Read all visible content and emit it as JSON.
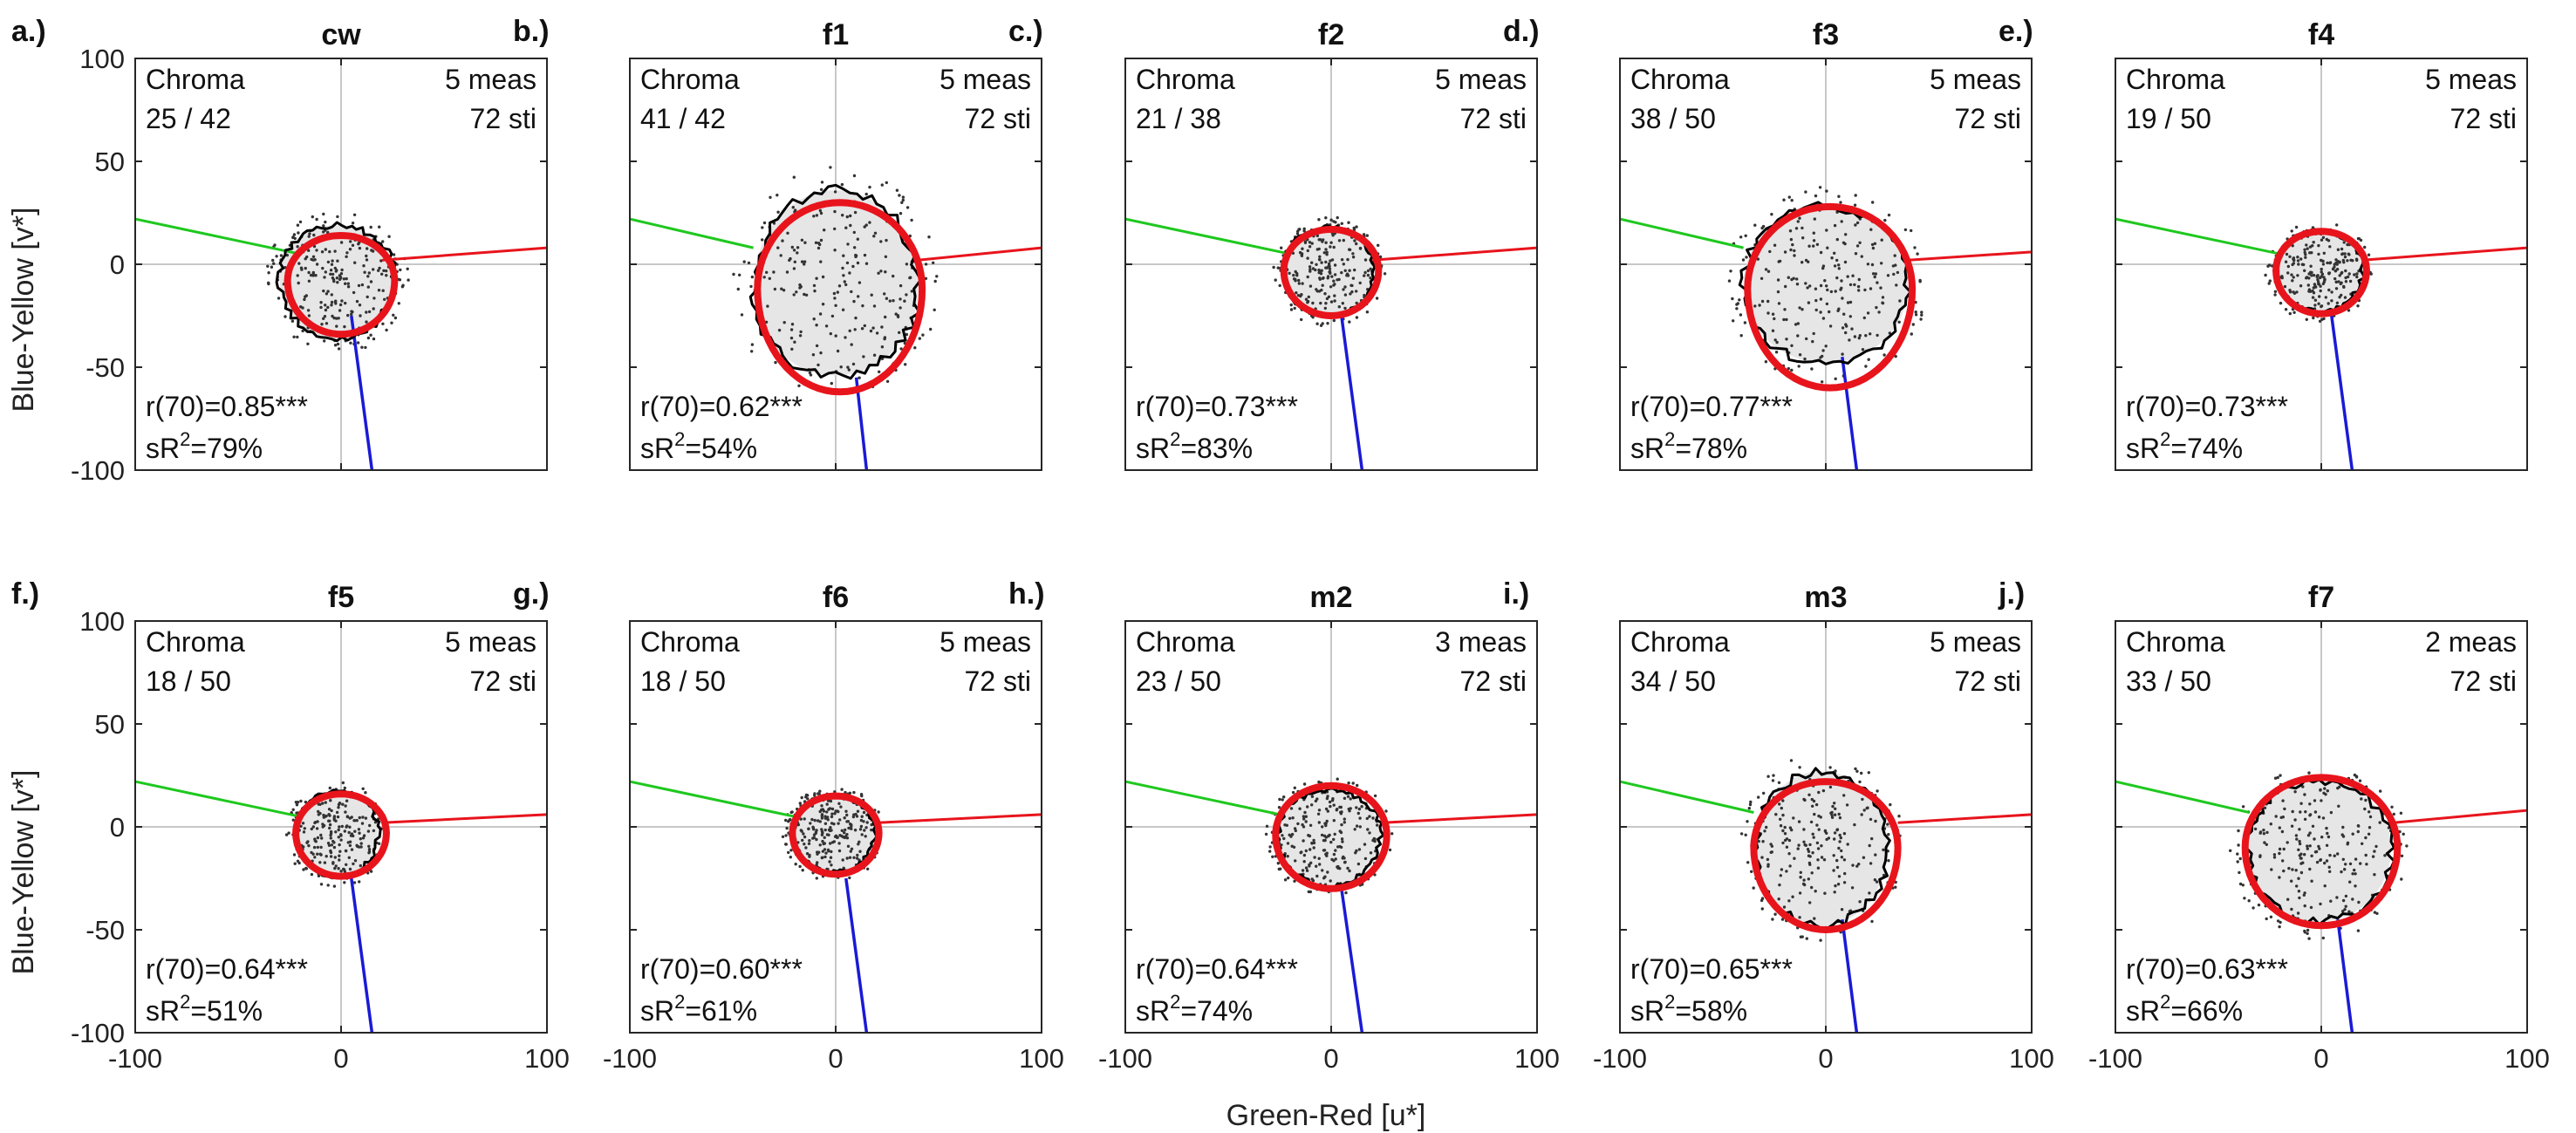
{
  "figure": {
    "xlabel": "Green-Red [u*]",
    "ylabel": "Blue-Yellow [v*]",
    "xlim": [
      -100,
      100
    ],
    "ylim": [
      -100,
      100
    ],
    "xticks": [
      "-100",
      "0",
      "100"
    ],
    "yticks": [
      "100",
      "50",
      "0",
      "-50",
      "-100"
    ],
    "colors": {
      "fit_contour": "#e8141c",
      "data_contour": "#000000",
      "green_axis": "#1ec81e",
      "red_axis": "#e8141c",
      "blue_axis": "#1a1ad6",
      "fill": "#e6e6e6",
      "grid": "#c8c8c8"
    }
  },
  "chart_data": [
    {
      "type": "scatter",
      "panel": "a.)",
      "title": "cw",
      "chroma_label": "Chroma",
      "chroma": "25 / 42",
      "meas": "5 meas",
      "sti": "72 sti",
      "r_text": "r(70)=0.85***",
      "sr2_text": "=79%",
      "red_shape": {
        "cx": 0,
        "cy": -8,
        "rx": 26,
        "up": 22,
        "down": 26
      },
      "black_shape": {
        "cx": -2,
        "cy": -6,
        "rx": 28,
        "up": 25,
        "down": 30
      },
      "green_line": [
        [
          -100,
          22
        ],
        [
          -20,
          5
        ]
      ],
      "red_line": [
        [
          20,
          2
        ],
        [
          100,
          8
        ]
      ],
      "blue_line": [
        [
          5,
          -25
        ],
        [
          15,
          -100
        ]
      ]
    },
    {
      "type": "scatter",
      "panel": "b.)",
      "title": "f1",
      "chroma_label": "Chroma",
      "chroma": "41 / 42",
      "meas": "5 meas",
      "sti": "72 sti",
      "r_text": "r(70)=0.62***",
      "sr2_text": "=54%",
      "red_shape": {
        "cx": 2,
        "cy": -12,
        "rx": 40,
        "up": 42,
        "down": 50
      },
      "black_shape": {
        "cx": 0,
        "cy": -12,
        "rx": 40,
        "up": 48,
        "down": 42
      },
      "green_line": [
        [
          -100,
          22
        ],
        [
          -40,
          8
        ]
      ],
      "red_line": [
        [
          40,
          2
        ],
        [
          100,
          8
        ]
      ],
      "blue_line": [
        [
          10,
          -55
        ],
        [
          15,
          -100
        ]
      ]
    },
    {
      "type": "scatter",
      "panel": "c.)",
      "title": "f2",
      "chroma_label": "Chroma",
      "chroma": "21 / 38",
      "meas": "5 meas",
      "sti": "72 sti",
      "r_text": "r(70)=0.73***",
      "sr2_text": "=83%",
      "red_shape": {
        "cx": 0,
        "cy": -3,
        "rx": 23,
        "up": 20,
        "down": 22
      },
      "black_shape": {
        "cx": -1,
        "cy": -3,
        "rx": 22,
        "up": 21,
        "down": 22
      },
      "green_line": [
        [
          -100,
          22
        ],
        [
          -20,
          5
        ]
      ],
      "red_line": [
        [
          20,
          2
        ],
        [
          100,
          8
        ]
      ],
      "blue_line": [
        [
          5,
          -25
        ],
        [
          15,
          -100
        ]
      ]
    },
    {
      "type": "scatter",
      "panel": "d.)",
      "title": "f3",
      "chroma_label": "Chroma",
      "chroma": "38 / 50",
      "meas": "5 meas",
      "sti": "72 sti",
      "r_text": "r(70)=0.77***",
      "sr2_text": "=78%",
      "red_shape": {
        "cx": 2,
        "cy": -12,
        "rx": 40,
        "up": 40,
        "down": 48
      },
      "black_shape": {
        "cx": 0,
        "cy": -10,
        "rx": 40,
        "up": 38,
        "down": 38
      },
      "green_line": [
        [
          -100,
          22
        ],
        [
          -40,
          8
        ]
      ],
      "red_line": [
        [
          40,
          2
        ],
        [
          100,
          6
        ]
      ],
      "blue_line": [
        [
          8,
          -45
        ],
        [
          15,
          -100
        ]
      ]
    },
    {
      "type": "scatter",
      "panel": "e.)",
      "title": "f4",
      "chroma_label": "Chroma",
      "chroma": "19 / 50",
      "meas": "5 meas",
      "sti": "72 sti",
      "r_text": "r(70)=0.73***",
      "sr2_text": "=74%",
      "red_shape": {
        "cx": 0,
        "cy": -3,
        "rx": 22,
        "up": 19,
        "down": 21
      },
      "black_shape": {
        "cx": -1,
        "cy": -3,
        "rx": 21,
        "up": 19,
        "down": 20
      },
      "green_line": [
        [
          -100,
          22
        ],
        [
          -20,
          5
        ]
      ],
      "red_line": [
        [
          20,
          2
        ],
        [
          100,
          8
        ]
      ],
      "blue_line": [
        [
          5,
          -25
        ],
        [
          15,
          -100
        ]
      ]
    },
    {
      "type": "scatter",
      "panel": "f.)",
      "title": "f5",
      "chroma_label": "Chroma",
      "chroma": "18 / 50",
      "meas": "5 meas",
      "sti": "72 sti",
      "r_text": "r(70)=0.64***",
      "sr2_text": "=51%",
      "red_shape": {
        "cx": 0,
        "cy": -3,
        "rx": 22,
        "up": 19,
        "down": 21
      },
      "black_shape": {
        "cx": -2,
        "cy": -3,
        "rx": 20,
        "up": 20,
        "down": 21
      },
      "green_line": [
        [
          -100,
          22
        ],
        [
          -20,
          5
        ]
      ],
      "red_line": [
        [
          20,
          2
        ],
        [
          100,
          6
        ]
      ],
      "blue_line": [
        [
          5,
          -25
        ],
        [
          15,
          -100
        ]
      ]
    },
    {
      "type": "scatter",
      "panel": "g.)",
      "title": "f6",
      "chroma_label": "Chroma",
      "chroma": "18 / 50",
      "meas": "5 meas",
      "sti": "72 sti",
      "r_text": "r(70)=0.60***",
      "sr2_text": "=61%",
      "red_shape": {
        "cx": 0,
        "cy": -3,
        "rx": 21,
        "up": 18,
        "down": 20
      },
      "black_shape": {
        "cx": -1,
        "cy": -3,
        "rx": 20,
        "up": 18,
        "down": 19
      },
      "green_line": [
        [
          -100,
          22
        ],
        [
          -20,
          5
        ]
      ],
      "red_line": [
        [
          20,
          2
        ],
        [
          100,
          6
        ]
      ],
      "blue_line": [
        [
          5,
          -25
        ],
        [
          15,
          -100
        ]
      ]
    },
    {
      "type": "scatter",
      "panel": "h.)",
      "title": "m2",
      "chroma_label": "Chroma",
      "chroma": "23 / 50",
      "meas": "3 meas",
      "sti": "72 sti",
      "r_text": "r(70)=0.64***",
      "sr2_text": "=74%",
      "red_shape": {
        "cx": 0,
        "cy": -4,
        "rx": 27,
        "up": 24,
        "down": 26
      },
      "black_shape": {
        "cx": -1,
        "cy": -4,
        "rx": 25,
        "up": 22,
        "down": 25
      },
      "green_line": [
        [
          -100,
          22
        ],
        [
          -25,
          6
        ]
      ],
      "red_line": [
        [
          25,
          2
        ],
        [
          100,
          6
        ]
      ],
      "blue_line": [
        [
          5,
          -30
        ],
        [
          15,
          -100
        ]
      ]
    },
    {
      "type": "scatter",
      "panel": "i.)",
      "title": "m3",
      "chroma_label": "Chroma",
      "chroma": "34 / 50",
      "meas": "5 meas",
      "sti": "72 sti",
      "r_text": "r(70)=0.65***",
      "sr2_text": "=58%",
      "red_shape": {
        "cx": 0,
        "cy": -10,
        "rx": 35,
        "up": 32,
        "down": 40
      },
      "black_shape": {
        "cx": -2,
        "cy": -10,
        "rx": 32,
        "up": 37,
        "down": 38
      },
      "green_line": [
        [
          -100,
          22
        ],
        [
          -35,
          7
        ]
      ],
      "red_line": [
        [
          35,
          2
        ],
        [
          100,
          6
        ]
      ],
      "blue_line": [
        [
          8,
          -45
        ],
        [
          15,
          -100
        ]
      ]
    },
    {
      "type": "scatter",
      "panel": "j.)",
      "title": "f7",
      "chroma_label": "Chroma",
      "chroma": "33 / 50",
      "meas": "2 meas",
      "sti": "72 sti",
      "r_text": "r(70)=0.63***",
      "sr2_text": "=66%",
      "red_shape": {
        "cx": 0,
        "cy": -10,
        "rx": 37,
        "up": 34,
        "down": 38
      },
      "black_shape": {
        "cx": -1,
        "cy": -10,
        "rx": 35,
        "up": 32,
        "down": 36
      },
      "green_line": [
        [
          -100,
          22
        ],
        [
          -35,
          7
        ]
      ],
      "red_line": [
        [
          35,
          2
        ],
        [
          100,
          8
        ]
      ],
      "blue_line": [
        [
          8,
          -45
        ],
        [
          15,
          -100
        ]
      ]
    }
  ]
}
